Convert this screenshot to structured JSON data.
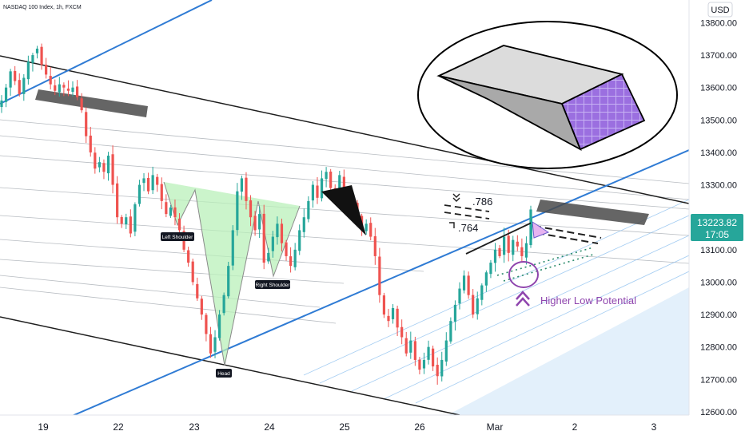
{
  "header": {
    "title": "NASDAQ 100 Index, 1h, FXCM"
  },
  "currency_button": "USD",
  "price_tag": {
    "price": "13223.82",
    "countdown": "17:05",
    "color": "#26a69a"
  },
  "annotations": {
    "fib_upper": ".786",
    "fib_lower": ".764",
    "left_shoulder": "Left Shoulder",
    "head": "Head",
    "right_shoulder": "Right Shoulder",
    "higher_low": "Higher Low Potential"
  },
  "colors": {
    "up_candle": "#26a69a",
    "down_candle": "#ef5350",
    "trendline_blue": "#2f7bd4",
    "channel_black": "#1e1e1e",
    "pattern_fill": "#b9f0b9",
    "higher_low_purple": "#8e44ad",
    "zone_gray": "#4a4a4a"
  },
  "chart_data": {
    "type": "candlestick",
    "symbol": "NASDAQ 100 Index",
    "timeframe": "1h",
    "source": "FXCM",
    "currency": "USD",
    "ylim": [
      12590,
      13870
    ],
    "y_ticks": [
      12600,
      12700,
      12800,
      12900,
      13000,
      13100,
      13200,
      13300,
      13400,
      13500,
      13600,
      13700,
      13800
    ],
    "y_tick_labels": [
      "12600.00",
      "12700.00",
      "12800.00",
      "12900.00",
      "13000.00",
      "13100.00",
      "13200.00",
      "13300.00",
      "13400.00",
      "13500.00",
      "13600.00",
      "13700.00",
      "13800.00"
    ],
    "x_tick_labels": [
      "19",
      "22",
      "23",
      "24",
      "25",
      "26",
      "Mar",
      "2",
      "3"
    ],
    "last_price": 13223.82,
    "close_path": [
      13560,
      13600,
      13650,
      13620,
      13580,
      13630,
      13680,
      13700,
      13720,
      13670,
      13640,
      13610,
      13590,
      13610,
      13600,
      13590,
      13600,
      13570,
      13530,
      13450,
      13400,
      13350,
      13370,
      13340,
      13390,
      13300,
      13200,
      13180,
      13200,
      13150,
      13240,
      13300,
      13320,
      13280,
      13330,
      13300,
      13250,
      13210,
      13230,
      13200,
      13160,
      13100,
      13060,
      13000,
      12950,
      12900,
      12840,
      12780,
      12830,
      12900,
      12960,
      13050,
      13160,
      13280,
      13320,
      13250,
      13200,
      13160,
      13210,
      13060,
      13090,
      13140,
      13180,
      13120,
      13080,
      13050,
      13100,
      13160,
      13200,
      13250,
      13300,
      13260,
      13320,
      13340,
      13290,
      13270,
      13330,
      13260,
      13220,
      13250,
      13200,
      13160,
      13180,
      13140,
      13080,
      12960,
      12900,
      12880,
      12920,
      12860,
      12830,
      12780,
      12820,
      12760,
      12730,
      12760,
      12800,
      12740,
      12710,
      12760,
      12820,
      12880,
      12930,
      12980,
      13020,
      12960,
      12900,
      12950,
      12990,
      13030,
      13060,
      13100,
      13080,
      13140,
      13090,
      13130,
      13110,
      13080,
      13120,
      13224
    ]
  }
}
